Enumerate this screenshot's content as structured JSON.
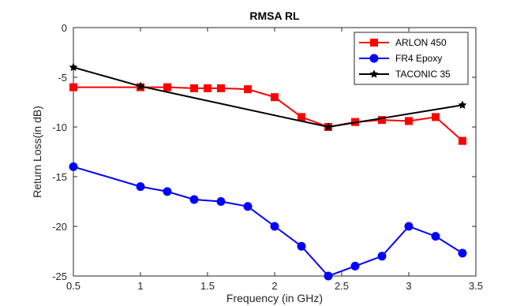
{
  "chart_data": {
    "type": "line",
    "title": "RMSA RL",
    "xlabel": "Frequency (in GHz)",
    "ylabel": "Return Loss(in dB)",
    "xlim": [
      0.5,
      3.5
    ],
    "ylim": [
      -25,
      0
    ],
    "xticks": [
      0.5,
      1,
      1.5,
      2,
      2.5,
      3,
      3.5
    ],
    "xtick_labels": [
      "0.5",
      "1",
      "1.5",
      "2",
      "2.5",
      "3",
      "3.5"
    ],
    "yticks": [
      0,
      -5,
      -10,
      -15,
      -20,
      -25
    ],
    "ytick_labels": [
      "0",
      "-5",
      "-10",
      "-15",
      "-20",
      "-25"
    ],
    "grid": false,
    "legend_position": "top-right",
    "series": [
      {
        "name": "ARLON 450",
        "color": "#ff0000",
        "marker": "square",
        "x": [
          0.5,
          1.0,
          1.2,
          1.4,
          1.5,
          1.6,
          1.8,
          2.0,
          2.2,
          2.4,
          2.6,
          2.8,
          3.0,
          3.2,
          3.4
        ],
        "y": [
          -6.0,
          -6.0,
          -6.0,
          -6.1,
          -6.1,
          -6.1,
          -6.2,
          -7.0,
          -9.0,
          -10.0,
          -9.5,
          -9.3,
          -9.4,
          -9.0,
          -11.4
        ]
      },
      {
        "name": "FR4 Epoxy",
        "color": "#0000ff",
        "marker": "circle",
        "x": [
          0.5,
          1.0,
          1.2,
          1.4,
          1.6,
          1.8,
          2.0,
          2.2,
          2.4,
          2.6,
          2.8,
          3.0,
          3.2,
          3.4
        ],
        "y": [
          -14.0,
          -16.0,
          -16.5,
          -17.3,
          -17.5,
          -18.0,
          -20.0,
          -22.0,
          -25.0,
          -24.0,
          -23.0,
          -20.0,
          -21.0,
          -22.7
        ]
      },
      {
        "name": "TACONIC 35",
        "color": "#000000",
        "marker": "star",
        "x": [
          0.5,
          1.0,
          2.4,
          3.4
        ],
        "y": [
          -4.0,
          -5.9,
          -10.0,
          -7.8
        ]
      }
    ]
  }
}
